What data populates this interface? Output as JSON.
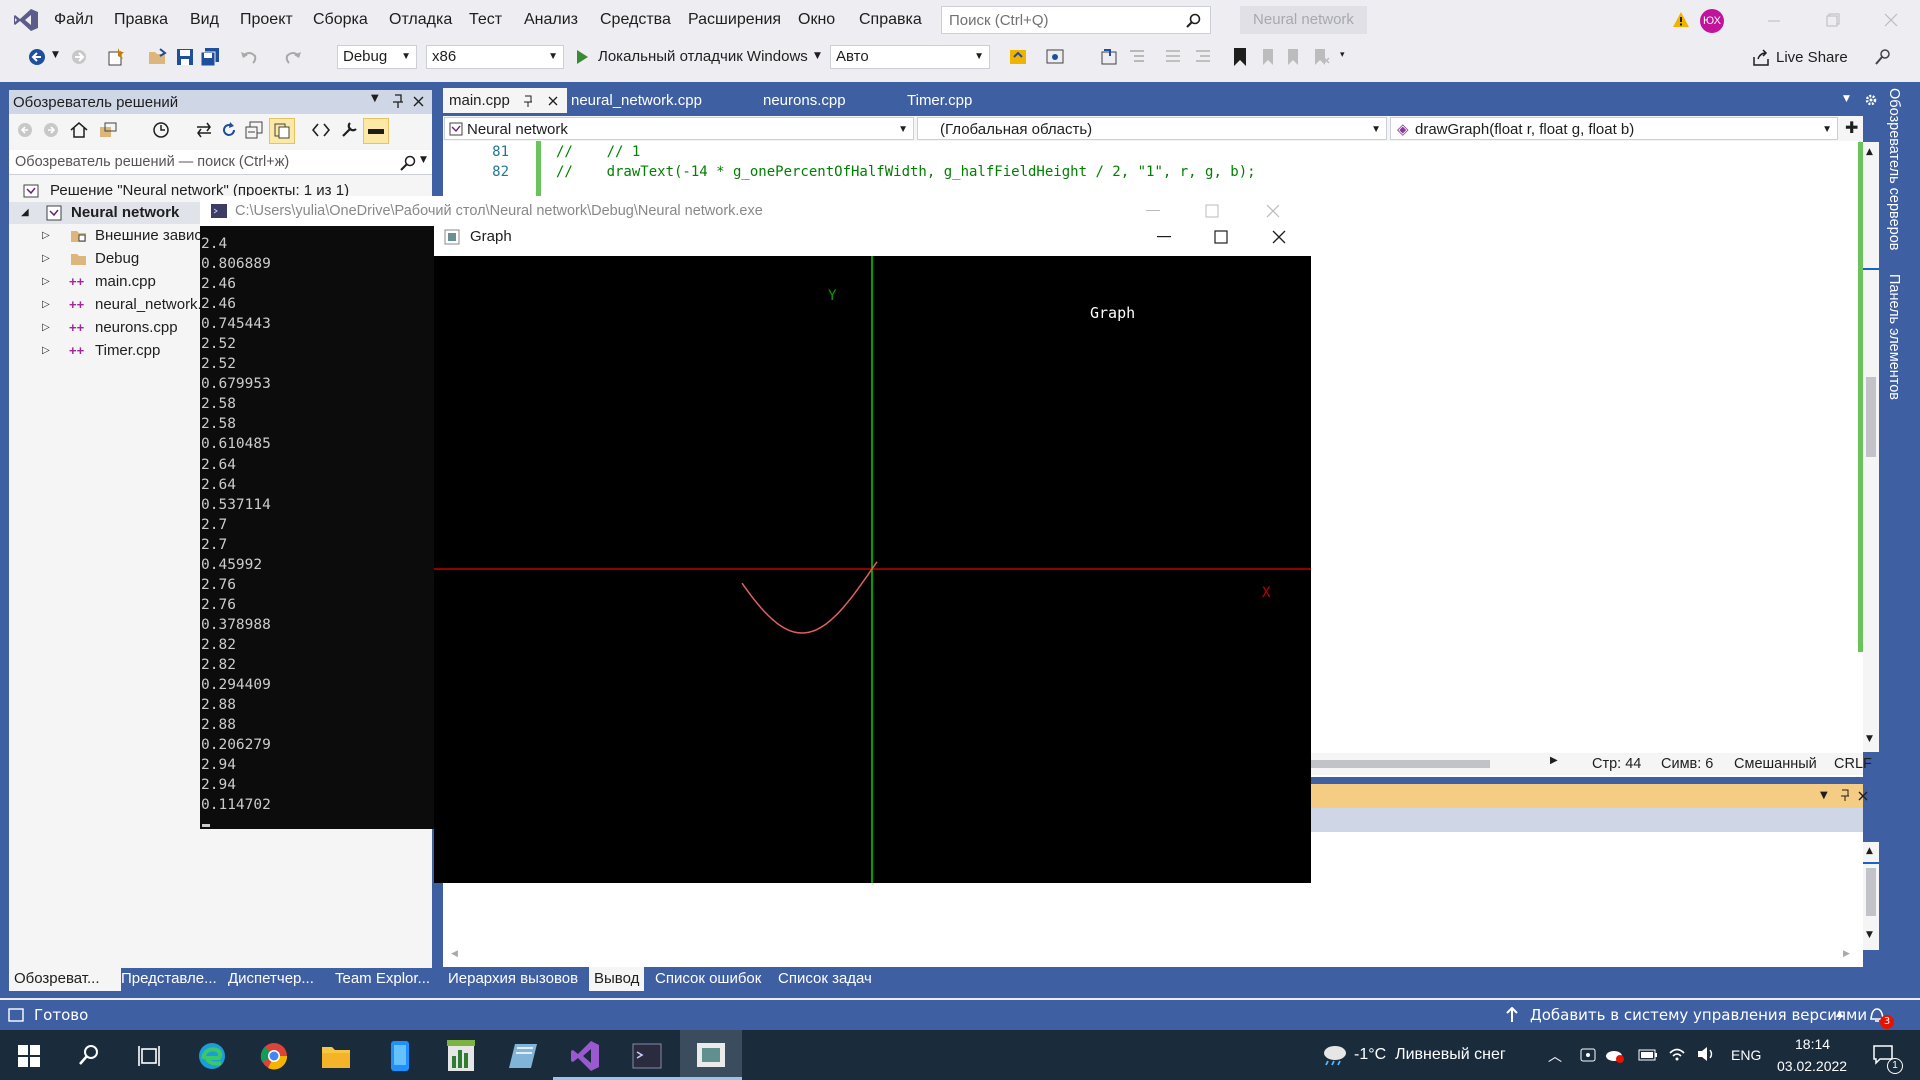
{
  "menubar": {
    "items": [
      "Файл",
      "Правка",
      "Вид",
      "Проект",
      "Сборка",
      "Отладка",
      "Тест",
      "Анализ",
      "Средства",
      "Расширения",
      "Окно",
      "Справка"
    ],
    "search_placeholder": "Поиск (Ctrl+Q)",
    "solution_name": "Neural network",
    "avatar": "ЮХ"
  },
  "toolbar": {
    "config": "Debug",
    "platform": "x86",
    "run_label": "Локальный отладчик Windows",
    "run_mode": "Авто",
    "live_share": "Live Share"
  },
  "solution_explorer": {
    "title": "Обозреватель решений",
    "search_placeholder": "Обозреватель решений — поиск (Ctrl+ж)",
    "solution_label": "Решение \"Neural network\" (проекты: 1 из 1)",
    "project": "Neural network",
    "items": [
      "Внешние зависимости",
      "Debug",
      "main.cpp",
      "neural_network.cpp",
      "neurons.cpp",
      "Timer.cpp"
    ],
    "bottom_tabs": [
      "Обозреват...",
      "Представле...",
      "Диспетчер...",
      "Team Explor..."
    ]
  },
  "editor": {
    "tabs": [
      "main.cpp",
      "neural_network.cpp",
      "neurons.cpp",
      "Timer.cpp"
    ],
    "nav_project": "Neural network",
    "nav_scope": "(Глобальная область)",
    "nav_member": "drawGraph(float r, float g, float b)",
    "lines": [
      {
        "num": "81",
        "code": "//    // 1"
      },
      {
        "num": "82",
        "code": "//    drawText(-14 * g_onePercentOfHalfWidth, g_halfFieldHeight / 2, \"1\", r, g, b);"
      }
    ],
    "status": {
      "line": "Стр: 44",
      "col": "Симв: 6",
      "mode": "Смешанный",
      "eol": "CRLF"
    }
  },
  "output": {
    "tabs": [
      "Иерархия вызовов",
      "Вывод",
      "Список ошибок",
      "Список задач"
    ]
  },
  "side_panels": [
    "Обозреватель серверов",
    "Панель элементов"
  ],
  "console": {
    "path": "C:\\Users\\yulia\\OneDrive\\Рабочий стол\\Neural network\\Debug\\Neural network.exe",
    "lines": [
      "2.4",
      "0.806889",
      "2.46",
      "2.46",
      "0.745443",
      "2.52",
      "2.52",
      "0.679953",
      "2.58",
      "2.58",
      "0.610485",
      "2.64",
      "2.64",
      "0.537114",
      "2.7",
      "2.7",
      "0.45992",
      "2.76",
      "2.76",
      "0.378988",
      "2.82",
      "2.82",
      "0.294409",
      "2.88",
      "2.88",
      "0.206279",
      "2.94",
      "2.94",
      "0.114702"
    ]
  },
  "graph_window": {
    "title": "Graph",
    "canvas_title": "Graph",
    "y_label": "Y",
    "x_label": "X",
    "colors": {
      "axis_x": "#c00000",
      "axis_y": "#00a000",
      "curve": "#e06060"
    }
  },
  "vs_status": {
    "ready": "Готово",
    "source_control": "Добавить в систему управления версиями",
    "notifications": "3"
  },
  "taskbar": {
    "weather": "-1°C  Ливневый снег",
    "lang": "ENG",
    "time": "18:14",
    "date": "03.02.2022",
    "notif_count": "1"
  }
}
